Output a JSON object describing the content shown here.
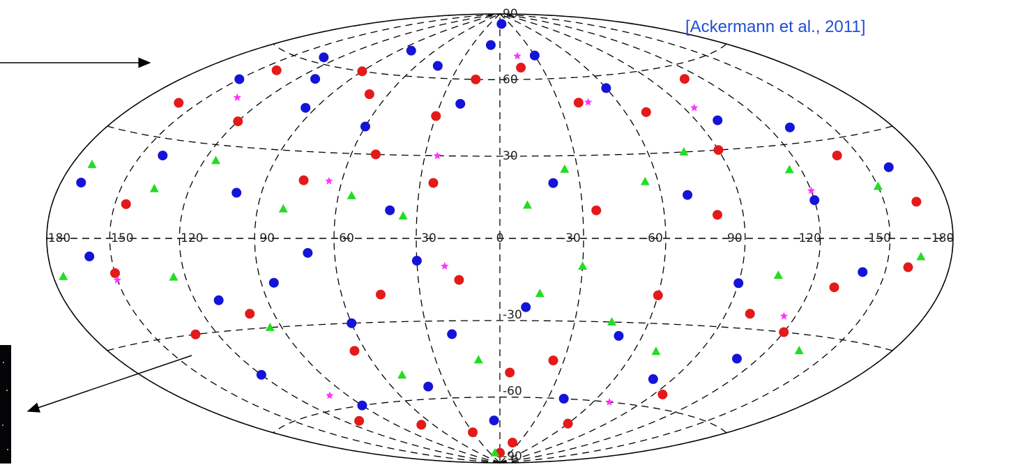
{
  "chart_data": {
    "type": "scatter",
    "projection": "hammer",
    "annotation": "[Ackermann et al., 2011]",
    "xlim": [
      180,
      -180
    ],
    "ylim": [
      -90,
      90
    ],
    "xticks": [
      180,
      150,
      120,
      90,
      60,
      30,
      0,
      -30,
      -60,
      -90,
      -120,
      -150,
      -180
    ],
    "yticks": [
      90,
      60,
      30,
      -30,
      -60,
      -90
    ],
    "grid": true,
    "series": [
      {
        "color": "#1414d8",
        "marker": "circle",
        "x": [
          150,
          130,
          110,
          95,
          80,
          60,
          45,
          20,
          10,
          -5,
          -30,
          -60,
          -100,
          -130,
          -160,
          170,
          140,
          100,
          40,
          -20,
          -70,
          -120,
          160,
          110,
          85,
          70,
          30,
          -10,
          -50,
          -90,
          -140,
          120,
          90,
          40,
          5,
          -40,
          -80,
          -110,
          20,
          60
        ],
        "values": [
          50,
          62,
          55,
          45,
          70,
          40,
          65,
          50,
          75,
          85,
          70,
          55,
          40,
          35,
          20,
          15,
          25,
          15,
          10,
          20,
          15,
          12,
          -5,
          -20,
          -15,
          -5,
          -8,
          -25,
          -35,
          -15,
          -10,
          -45,
          -60,
          -55,
          -70,
          -60,
          -50,
          -40,
          -35,
          -30
        ]
      },
      {
        "color": "#e41a1a",
        "marker": "circle",
        "x": [
          160,
          140,
          120,
          90,
          70,
          50,
          30,
          15,
          -15,
          -40,
          -70,
          -90,
          -110,
          -140,
          -165,
          145,
          75,
          25,
          -35,
          -80,
          150,
          130,
          100,
          65,
          45,
          15,
          -5,
          -25,
          -60,
          -100,
          -130,
          -160,
          110,
          70,
          30,
          -20,
          -60,
          -95,
          -120,
          0
        ],
        "values": [
          40,
          55,
          38,
          60,
          52,
          30,
          45,
          60,
          65,
          50,
          45,
          30,
          55,
          25,
          10,
          10,
          20,
          20,
          10,
          8,
          -10,
          -30,
          -25,
          -40,
          -20,
          -15,
          -50,
          -45,
          -20,
          -25,
          -15,
          -8,
          -65,
          -70,
          -75,
          -80,
          -70,
          -55,
          -30,
          -85
        ]
      },
      {
        "color": "#22dd22",
        "marker": "triangle",
        "x": [
          170,
          135,
          115,
          80,
          55,
          35,
          -10,
          -25,
          -55,
          -75,
          -115,
          -150,
          175,
          125,
          95,
          50,
          10,
          -15,
          -30,
          -45,
          -70,
          -105,
          -135,
          -165,
          15
        ],
        "values": [
          20,
          15,
          25,
          10,
          15,
          8,
          12,
          25,
          20,
          30,
          22,
          15,
          -10,
          -12,
          -30,
          -50,
          -45,
          -20,
          -10,
          -30,
          -40,
          -12,
          -35,
          -5,
          -85
        ]
      },
      {
        "color": "#ff33ff",
        "marker": "star",
        "x": [
          135,
          65,
          25,
          -15,
          -45,
          -95,
          -120,
          150,
          100,
          -115,
          -70,
          20
        ],
        "values": [
          45,
          20,
          30,
          70,
          50,
          45,
          15,
          -12,
          -55,
          -25,
          -60,
          -10
        ]
      }
    ]
  }
}
